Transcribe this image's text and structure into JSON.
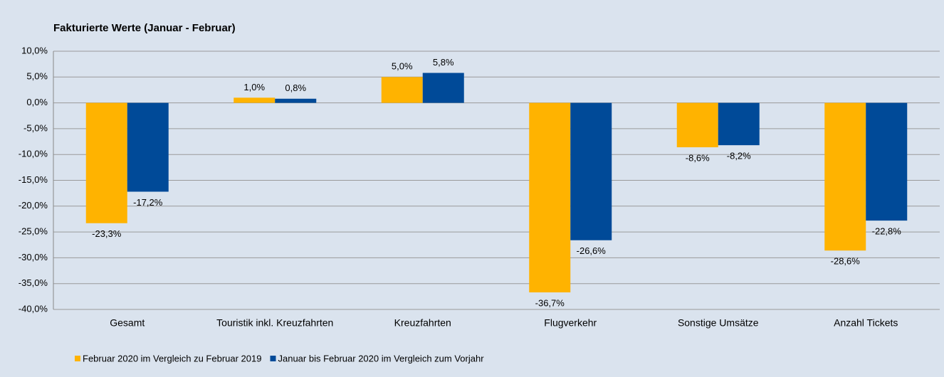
{
  "chart_data": {
    "type": "bar",
    "title": "Fakturierte Werte (Januar - Februar)",
    "categories": [
      "Gesamt",
      "Touristik inkl. Kreuzfahrten",
      "Kreuzfahrten",
      "Flugverkehr",
      "Sonstige Umsätze",
      "Anzahl Tickets"
    ],
    "series": [
      {
        "name": "Februar 2020 im Vergleich zu Februar 2019",
        "color": "#ffb300",
        "values": [
          -23.3,
          1.0,
          5.0,
          -36.7,
          -8.6,
          -28.6
        ],
        "value_labels": [
          "-23,3%",
          "1,0%",
          "5,0%",
          "-36,7%",
          "-8,6%",
          "-28,6%"
        ]
      },
      {
        "name": "Januar bis Februar 2020 im Vergleich zum Vorjahr",
        "color": "#004a98",
        "values": [
          -17.2,
          0.8,
          5.8,
          -26.6,
          -8.2,
          -22.8
        ],
        "value_labels": [
          "-17,2%",
          "0,8%",
          "5,8%",
          "-26,6%",
          "-8,2%",
          "-22,8%"
        ]
      }
    ],
    "ylim": [
      -40,
      10
    ],
    "yticks": [
      {
        "value": 10,
        "label": "10,0%"
      },
      {
        "value": 5,
        "label": "5,0%"
      },
      {
        "value": 0,
        "label": "0,0%"
      },
      {
        "value": -5,
        "label": "-5,0%"
      },
      {
        "value": -10,
        "label": "-10,0%"
      },
      {
        "value": -15,
        "label": "-15,0%"
      },
      {
        "value": -20,
        "label": "-20,0%"
      },
      {
        "value": -25,
        "label": "-25,0%"
      },
      {
        "value": -30,
        "label": "-30,0%"
      },
      {
        "value": -35,
        "label": "-35,0%"
      },
      {
        "value": -40,
        "label": "-40,0%"
      }
    ],
    "grid": true,
    "legend": "bottom-left"
  }
}
